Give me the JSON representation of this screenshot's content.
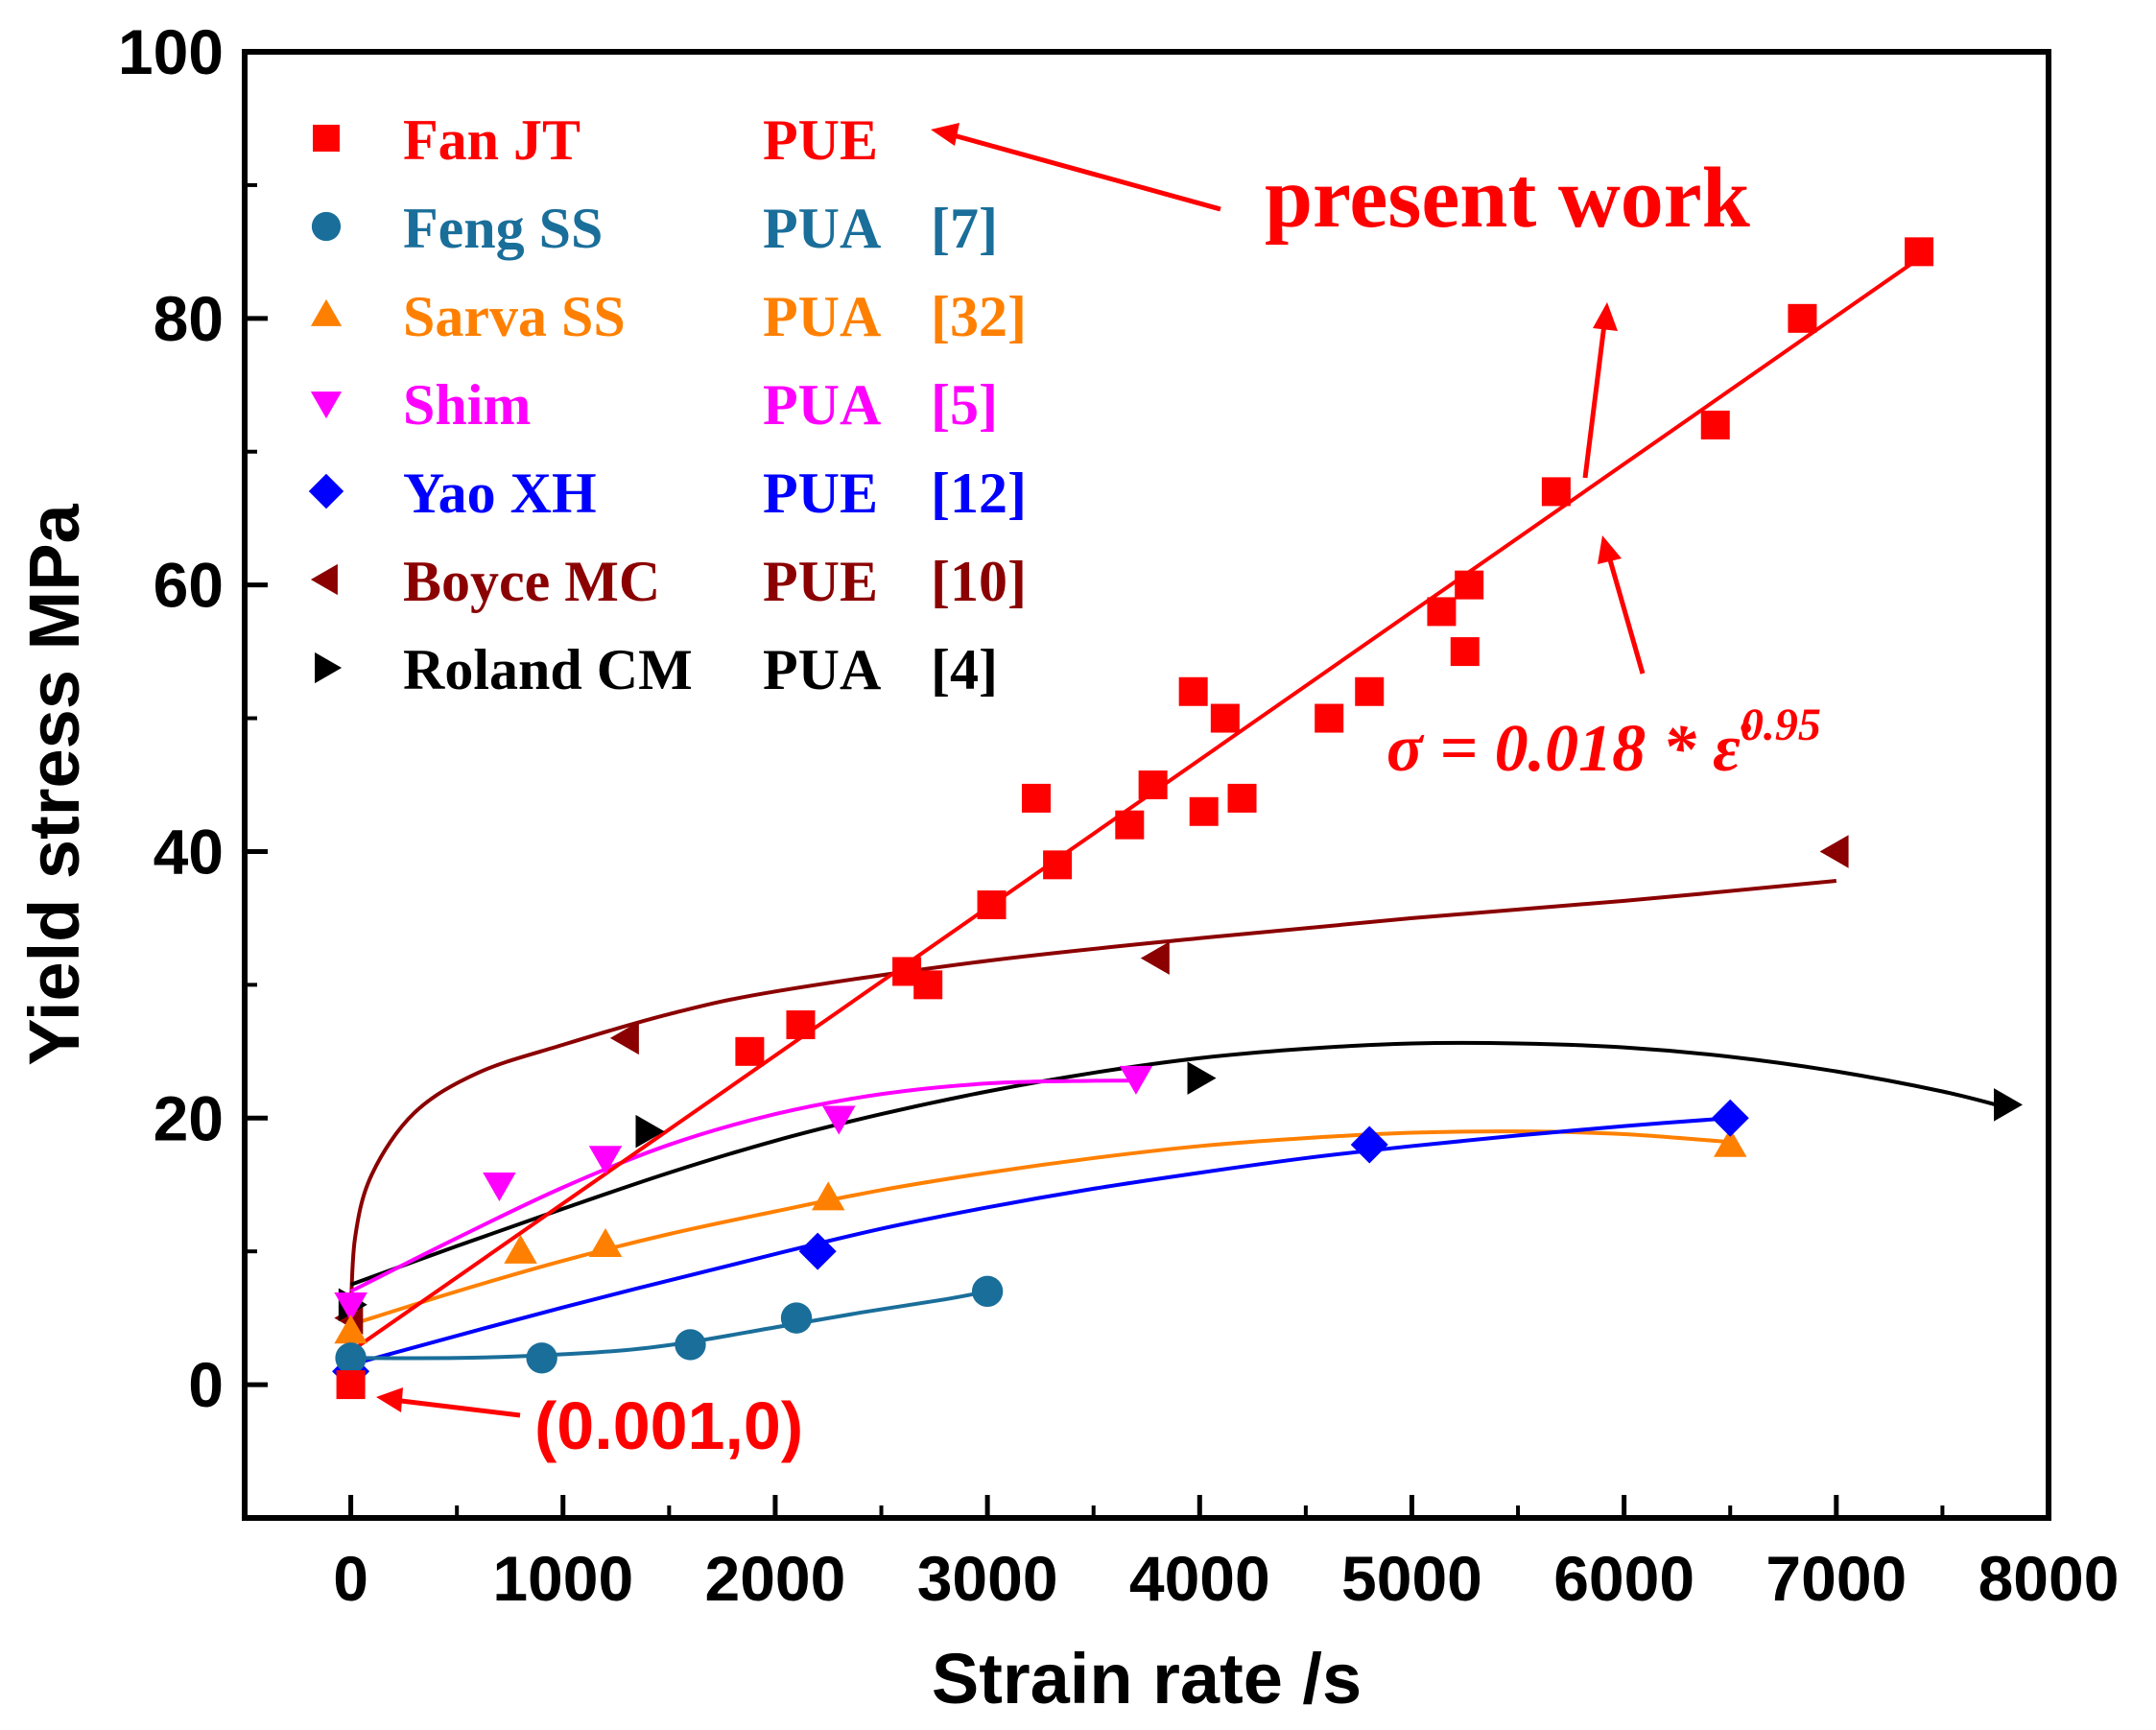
{
  "chart_data": {
    "type": "scatter",
    "xlabel": "Strain rate /s",
    "ylabel": "Yield stress MPa",
    "xlim": [
      -500,
      8000
    ],
    "ylim": [
      -10,
      100
    ],
    "xticks": [
      0,
      1000,
      2000,
      3000,
      4000,
      5000,
      6000,
      7000,
      8000
    ],
    "yticks": [
      0,
      20,
      40,
      60,
      80,
      100
    ],
    "series": [
      {
        "name": "Fan JT",
        "material": "PUE",
        "ref": "",
        "color": "#ff0000",
        "marker": "square",
        "x": [
          0,
          1880,
          2120,
          2620,
          2720,
          3020,
          3230,
          3330,
          3670,
          3780,
          3970,
          4020,
          4120,
          4200,
          4610,
          4800,
          5140,
          5250,
          5270,
          5680,
          6430,
          6840,
          7390
        ],
        "y": [
          0,
          25,
          27,
          31,
          30,
          36,
          44,
          39,
          42,
          45,
          52,
          43,
          50,
          44,
          50,
          52,
          58,
          55,
          60,
          67,
          72,
          80,
          85
        ],
        "fit": {
          "x": [
            0,
            7390
          ],
          "y": [
            2.5,
            84.5
          ]
        }
      },
      {
        "name": "Feng  SS",
        "material": "PUA",
        "ref": "[7]",
        "color": "#1a6e9a",
        "marker": "circle",
        "x": [
          0,
          900,
          1600,
          2100,
          3000
        ],
        "y": [
          2,
          2,
          3,
          5,
          7
        ],
        "fit": {
          "x": [
            0,
            500,
            900,
            1300,
            1600,
            2000,
            2400,
            2800,
            3000
          ],
          "y": [
            2,
            2,
            2.2,
            2.6,
            3.2,
            4.3,
            5.4,
            6.4,
            7
          ]
        }
      },
      {
        "name": "Sarva SS",
        "material": "PUA",
        "ref": "[32]",
        "color": "#ff8000",
        "marker": "triangle-up",
        "x": [
          0,
          800,
          1200,
          2250,
          6500
        ],
        "y": [
          4,
          10,
          10.5,
          14,
          18
        ],
        "fit": {
          "x": [
            0,
            500,
            1000,
            1500,
            2000,
            2500,
            3000,
            3500,
            4000,
            4500,
            5000,
            5500,
            6000,
            6500
          ],
          "y": [
            4.5,
            7,
            9.3,
            11.3,
            13,
            14.6,
            15.9,
            17,
            17.9,
            18.5,
            18.9,
            19,
            18.8,
            18.2
          ]
        }
      },
      {
        "name": "Shim",
        "material": "PUA",
        "ref": "[5]",
        "color": "#ff00ff",
        "marker": "triangle-down",
        "x": [
          0,
          700,
          1200,
          2300,
          3700
        ],
        "y": [
          6,
          15,
          17,
          20,
          23
        ],
        "fit": {
          "x": [
            0,
            500,
            1000,
            1500,
            2000,
            2500,
            3000,
            3500,
            3700
          ],
          "y": [
            7,
            11,
            14.8,
            18,
            20.3,
            21.8,
            22.6,
            22.8,
            22.8
          ]
        }
      },
      {
        "name": "Yao XH",
        "material": "PUE",
        "ref": "[12]",
        "color": "#0000ff",
        "marker": "diamond",
        "x": [
          0,
          2200,
          4800,
          6500
        ],
        "y": [
          1,
          10,
          18,
          20
        ],
        "fit": {
          "x": [
            0,
            1000,
            2000,
            2500,
            3000,
            3500,
            4000,
            4500,
            5000,
            5500,
            6000,
            6500
          ],
          "y": [
            1.5,
            5.8,
            9.8,
            11.7,
            13.3,
            14.7,
            15.9,
            17,
            17.9,
            18.7,
            19.4,
            20
          ]
        }
      },
      {
        "name": "Boyce MC",
        "material": "PUE",
        "ref": "[10]",
        "color": "#8b0000",
        "marker": "triangle-left",
        "x": [
          0,
          1300,
          3800,
          7000
        ],
        "y": [
          5,
          26,
          32,
          40
        ],
        "fit": {
          "x": [
            0,
            20,
            100,
            300,
            600,
            1000,
            1500,
            2000,
            3000,
            4000,
            5000,
            6000,
            7000
          ],
          "y": [
            5,
            11,
            15.8,
            20.4,
            23.4,
            25.5,
            27.8,
            29.5,
            31.8,
            33.5,
            35,
            36.3,
            37.8
          ]
        }
      },
      {
        "name": "Roland CM",
        "material": "PUA",
        "ref": "[4]",
        "color": "#000000",
        "marker": "triangle-right",
        "x": [
          0,
          1400,
          4000,
          7800
        ],
        "y": [
          6,
          19,
          23,
          21
        ],
        "fit": {
          "x": [
            0,
            500,
            1000,
            1500,
            2000,
            2500,
            3000,
            3500,
            4000,
            4500,
            5000,
            5500,
            6000,
            6500,
            7000,
            7500,
            7800
          ],
          "y": [
            7.5,
            10.4,
            13.2,
            15.9,
            18.3,
            20.3,
            22,
            23.4,
            24.5,
            25.2,
            25.6,
            25.6,
            25.3,
            24.6,
            23.5,
            22,
            20.8
          ]
        }
      }
    ],
    "annotations": {
      "present_work": "present work",
      "equation_prefix": "σ = 0.018 * ",
      "equation_symbol": "ε̇",
      "equation_exponent": "0.95",
      "origin_label": "(0.001,0)"
    }
  }
}
